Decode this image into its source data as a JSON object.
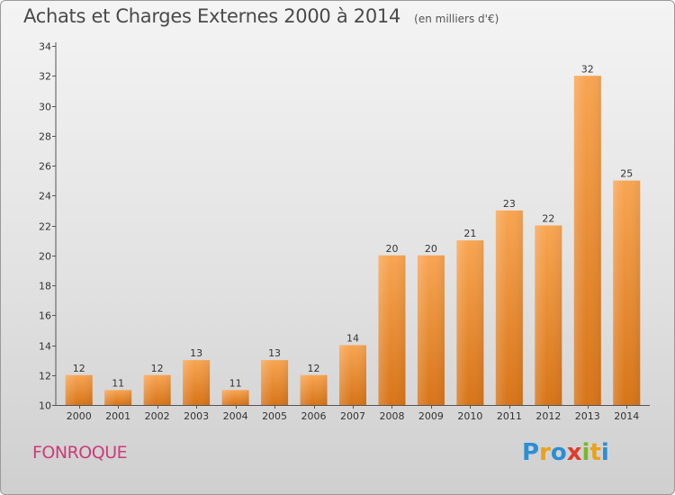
{
  "title": "Achats et Charges Externes 2000 à 2014",
  "unit": "(en milliers d'€)",
  "place": "FONROQUE",
  "logo": {
    "letters": [
      "P",
      "r",
      "o",
      "x",
      "i",
      "t",
      "i"
    ],
    "colors": [
      "#2a8fd4",
      "#e8a21b",
      "#2a8fd4",
      "#e23a2a",
      "#7ab829",
      "#e8a21b",
      "#2a8fd4"
    ]
  },
  "colors": {
    "bar_top": "#f8a552",
    "bar_bottom": "#d77418",
    "axis": "#555555",
    "grid": "#ffffff",
    "place": "#cc3b7a"
  },
  "chart_data": {
    "type": "bar",
    "categories": [
      "2000",
      "2001",
      "2002",
      "2003",
      "2004",
      "2005",
      "2006",
      "2007",
      "2008",
      "2009",
      "2010",
      "2011",
      "2012",
      "2013",
      "2014"
    ],
    "values": [
      12,
      11,
      12,
      13,
      11,
      13,
      12,
      14,
      20,
      20,
      21,
      23,
      22,
      32,
      25
    ],
    "data_labels": [
      "12",
      "11",
      "12",
      "13",
      "11",
      "13",
      "12",
      "14",
      "20",
      "20",
      "21",
      "23",
      "22",
      "32",
      "25"
    ],
    "title": "Achats et Charges Externes 2000 à 2014",
    "xlabel": "",
    "ylabel": "",
    "ylim": [
      10,
      34
    ],
    "yticks": [
      10,
      12,
      14,
      16,
      18,
      20,
      22,
      24,
      26,
      28,
      30,
      32,
      34
    ],
    "grid": false,
    "legend": "none"
  }
}
